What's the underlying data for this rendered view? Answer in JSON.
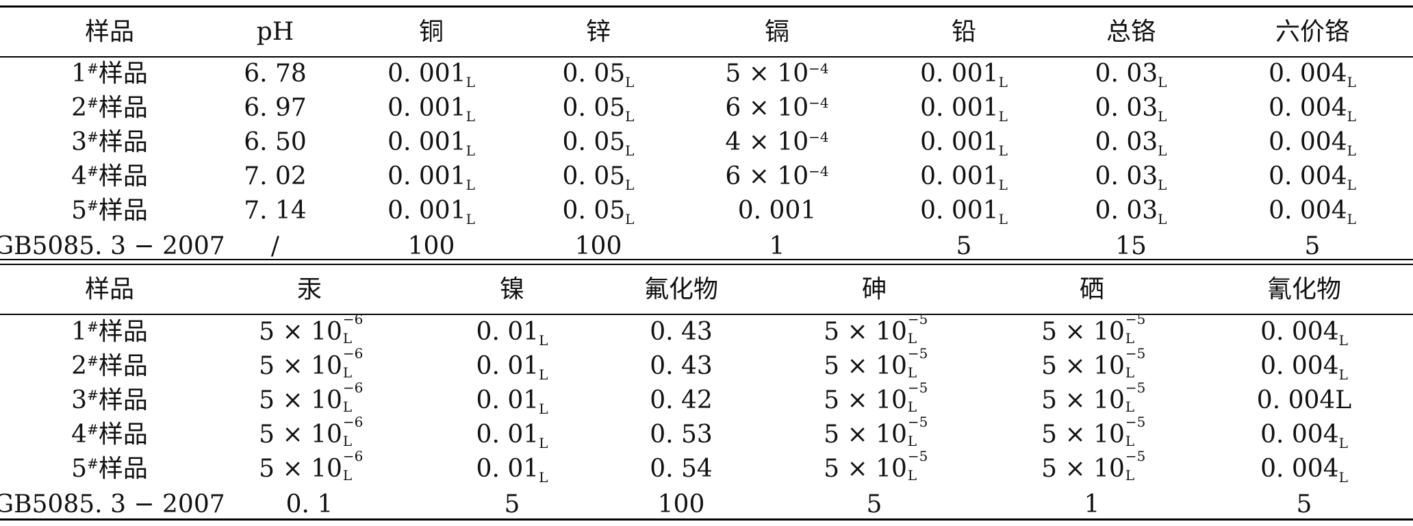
{
  "table_top": {
    "headers": [
      "样品",
      "pH",
      "铜",
      "锌",
      "镉",
      "铅",
      "总铬",
      "六价铬"
    ],
    "rows": [
      {
        "sample": "1",
        "mark": "#",
        "name": "样品",
        "ph": "6. 78",
        "cu": "0. 001",
        "cu_sub": "L",
        "zn": "0. 05",
        "zn_sub": "L",
        "cd_base": "5 × 10",
        "cd_exp": "−4",
        "pb": "0. 001",
        "pb_sub": "L",
        "cr": "0. 03",
        "cr_sub": "L",
        "cr6": "0. 004",
        "cr6_sub": "L"
      },
      {
        "sample": "2",
        "mark": "#",
        "name": "样品",
        "ph": "6. 97",
        "cu": "0. 001",
        "cu_sub": "L",
        "zn": "0. 05",
        "zn_sub": "L",
        "cd_base": "6 × 10",
        "cd_exp": "−4",
        "pb": "0. 001",
        "pb_sub": "L",
        "cr": "0. 03",
        "cr_sub": "L",
        "cr6": "0. 004",
        "cr6_sub": "L"
      },
      {
        "sample": "3",
        "mark": "#",
        "name": "样品",
        "ph": "6. 50",
        "cu": "0. 001",
        "cu_sub": "L",
        "zn": "0. 05",
        "zn_sub": "L",
        "cd_base": "4 × 10",
        "cd_exp": "−4",
        "pb": "0. 001",
        "pb_sub": "L",
        "cr": "0. 03",
        "cr_sub": "L",
        "cr6": "0. 004",
        "cr6_sub": "L"
      },
      {
        "sample": "4",
        "mark": "#",
        "name": "样品",
        "ph": "7. 02",
        "cu": "0. 001",
        "cu_sub": "L",
        "zn": "0. 05",
        "zn_sub": "L",
        "cd_base": "6 × 10",
        "cd_exp": "−4",
        "pb": "0. 001",
        "pb_sub": "L",
        "cr": "0. 03",
        "cr_sub": "L",
        "cr6": "0. 004",
        "cr6_sub": "L"
      },
      {
        "sample": "5",
        "mark": "#",
        "name": "样品",
        "ph": "7. 14",
        "cu": "0. 001",
        "cu_sub": "L",
        "zn": "0. 05",
        "zn_sub": "L",
        "cd": "0. 001",
        "pb": "0. 001",
        "pb_sub": "L",
        "cr": "0. 03",
        "cr_sub": "L",
        "cr6": "0. 004",
        "cr6_sub": "L"
      }
    ],
    "standard": {
      "label": "GB5085. 3 − 2007",
      "ph": "/",
      "cu": "100",
      "zn": "100",
      "cd": "1",
      "pb": "5",
      "cr": "15",
      "cr6": "5"
    }
  },
  "table_bottom": {
    "headers": [
      "样品",
      "汞",
      "镍",
      "氟化物",
      "砷",
      "硒",
      "氰化物"
    ],
    "rows": [
      {
        "sample": "1",
        "mark": "#",
        "name": "样品",
        "hg_base": "5 × 10",
        "hg_sub": "L",
        "hg_exp": "−6",
        "ni": "0. 01",
        "ni_sub": "L",
        "f": "0. 43",
        "as_base": "5 × 10",
        "as_sub": "L",
        "as_exp": "−5",
        "se_base": "5 × 10",
        "se_sub": "L",
        "se_exp": "−5",
        "cn": "0. 004",
        "cn_sub": "L"
      },
      {
        "sample": "2",
        "mark": "#",
        "name": "样品",
        "hg_base": "5 × 10",
        "hg_sub": "L",
        "hg_exp": "−6",
        "ni": "0. 01",
        "ni_sub": "L",
        "f": "0. 43",
        "as_base": "5 × 10",
        "as_sub": "L",
        "as_exp": "−5",
        "se_base": "5 × 10",
        "se_sub": "L",
        "se_exp": "−5",
        "cn": "0. 004",
        "cn_sub": "L"
      },
      {
        "sample": "3",
        "mark": "#",
        "name": "样品",
        "hg_base": "5 × 10",
        "hg_sub": "L",
        "hg_exp": "−6",
        "ni": "0. 01",
        "ni_sub": "L",
        "f": "0. 42",
        "as_base": "5 × 10",
        "as_sub": "L",
        "as_exp": "−5",
        "se_base": "5 × 10",
        "se_sub": "L",
        "se_exp": "−5",
        "cn_plain": "0. 004L"
      },
      {
        "sample": "4",
        "mark": "#",
        "name": "样品",
        "hg_base": "5 × 10",
        "hg_sub": "L",
        "hg_exp": "−6",
        "ni": "0. 01",
        "ni_sub": "L",
        "f": "0. 53",
        "as_base": "5 × 10",
        "as_sub": "L",
        "as_exp": "−5",
        "se_base": "5 × 10",
        "se_sub": "L",
        "se_exp": "−5",
        "cn": "0. 004",
        "cn_sub": "L"
      },
      {
        "sample": "5",
        "mark": "#",
        "name": "样品",
        "hg_base": "5 × 10",
        "hg_sub": "L",
        "hg_exp": "−6",
        "ni": "0. 01",
        "ni_sub": "L",
        "f": "0. 54",
        "as_base": "5 × 10",
        "as_sub": "L",
        "as_exp": "−5",
        "se_base": "5 × 10",
        "se_sub": "L",
        "se_exp": "−5",
        "cn": "0. 004",
        "cn_sub": "L"
      }
    ],
    "standard": {
      "label": "GB5085. 3 − 2007",
      "hg": "0. 1",
      "ni": "5",
      "f": "100",
      "as": "5",
      "se": "1",
      "cn": "5"
    }
  }
}
